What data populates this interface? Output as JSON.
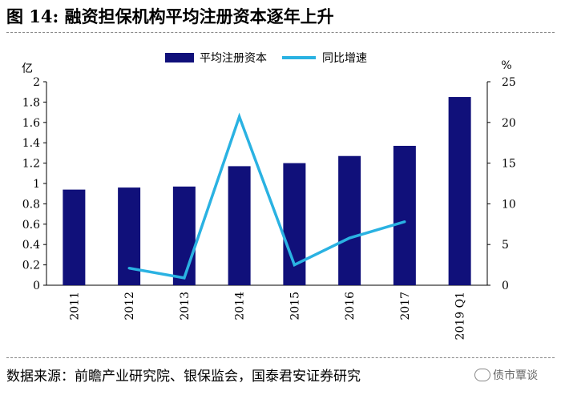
{
  "title": "图 14:  融资担保机构平均注册资本逐年上升",
  "source": "数据来源：前瞻产业研究院、银保监会，国泰君安证券研究",
  "watermark": "债市覃谈",
  "chart_data": {
    "type": "bar+line",
    "categories": [
      "2011",
      "2012",
      "2013",
      "2014",
      "2015",
      "2016",
      "2017",
      "2019 Q1"
    ],
    "series": [
      {
        "name": "平均注册资本",
        "type": "bar",
        "axis": "left",
        "color": "#10107a",
        "values": [
          0.94,
          0.96,
          0.97,
          1.17,
          1.2,
          1.27,
          1.37,
          1.85
        ]
      },
      {
        "name": "同比增速",
        "type": "line",
        "axis": "right",
        "color": "#2ab2e2",
        "values": [
          null,
          2.1,
          0.9,
          20.7,
          2.5,
          5.8,
          7.8,
          null
        ]
      }
    ],
    "y_left": {
      "unit_label": "亿",
      "min": 0,
      "max": 2,
      "step": 0.2,
      "ticks": [
        "0",
        "0.2",
        "0.4",
        "0.6",
        "0.8",
        "1",
        "1.2",
        "1.4",
        "1.6",
        "1.8",
        "2"
      ]
    },
    "y_right": {
      "unit_label": "%",
      "min": 0,
      "max": 25,
      "step": 5,
      "ticks": [
        "0",
        "5",
        "10",
        "15",
        "20",
        "25"
      ]
    },
    "legend_position": "top",
    "grid": false
  }
}
